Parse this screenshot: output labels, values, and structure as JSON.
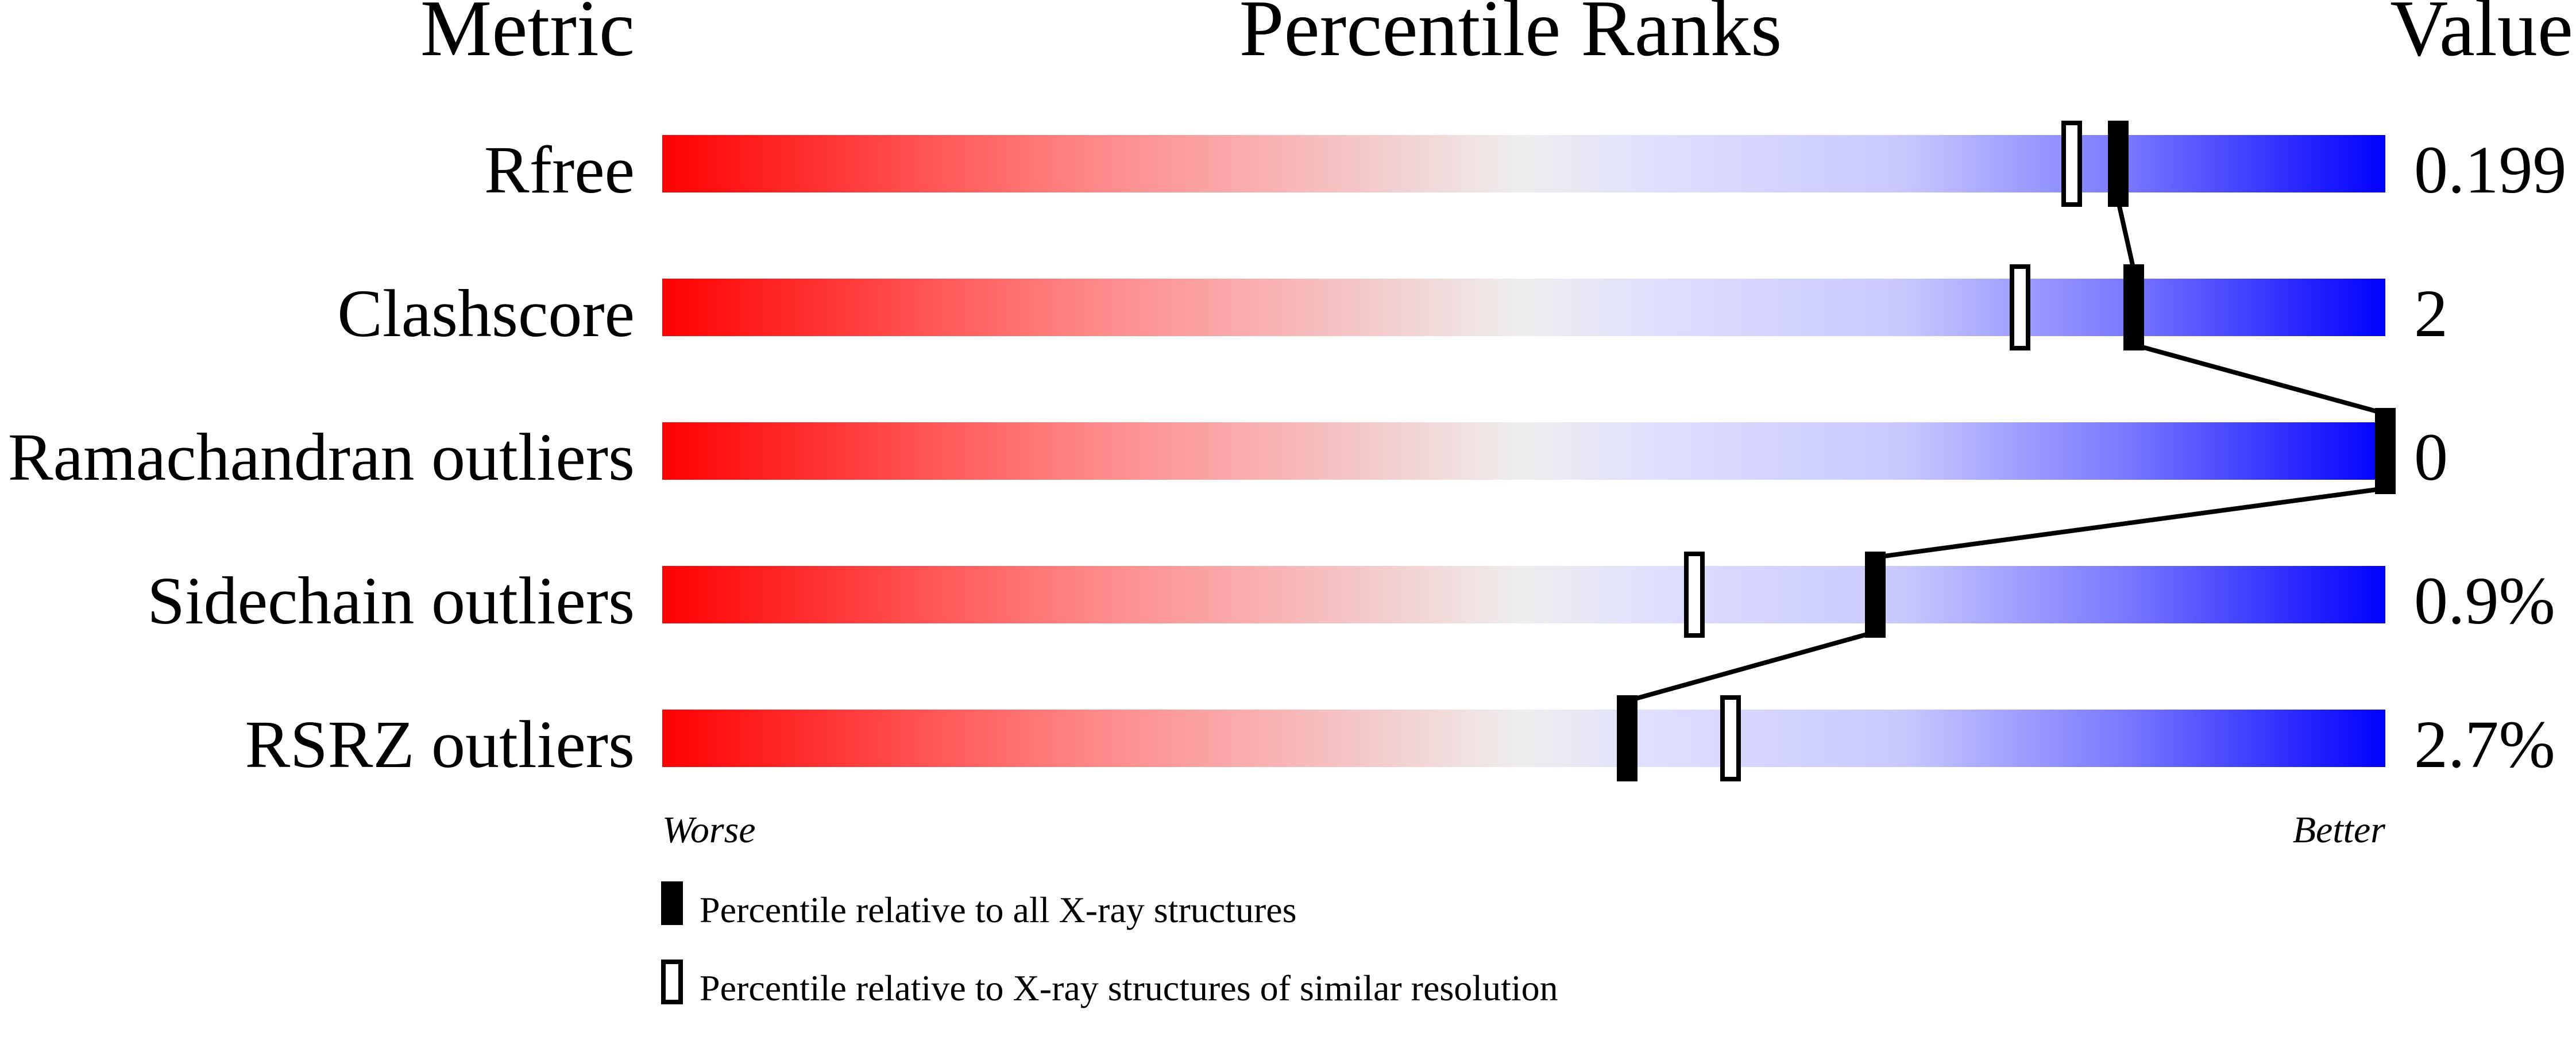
{
  "chart_data": {
    "type": "percentile-slider",
    "headers": {
      "metric": "Metric",
      "ranks": "Percentile Ranks",
      "value": "Value"
    },
    "axis": {
      "min": 0,
      "max": 100,
      "left_label": "Worse",
      "right_label": "Better"
    },
    "gradient_colors": {
      "worse": "#ff0000",
      "middle": "#eeeeee",
      "better": "#0000ff"
    },
    "metrics": [
      {
        "name": "Rfree",
        "value": "0.199",
        "percentile_all": 84.5,
        "percentile_similar": 81.8
      },
      {
        "name": "Clashscore",
        "value": "2",
        "percentile_all": 85.4,
        "percentile_similar": 78.8
      },
      {
        "name": "Ramachandran outliers",
        "value": "0",
        "percentile_all": 100,
        "percentile_similar": null
      },
      {
        "name": "Sidechain outliers",
        "value": "0.9%",
        "percentile_all": 70.4,
        "percentile_similar": 59.9
      },
      {
        "name": "RSRZ outliers",
        "value": "2.7%",
        "percentile_all": 56.0,
        "percentile_similar": 62.0
      }
    ],
    "legend": [
      {
        "marker": "filled",
        "label": "Percentile relative to all X-ray structures"
      },
      {
        "marker": "open",
        "label": "Percentile relative to X-ray structures of similar resolution"
      }
    ]
  }
}
